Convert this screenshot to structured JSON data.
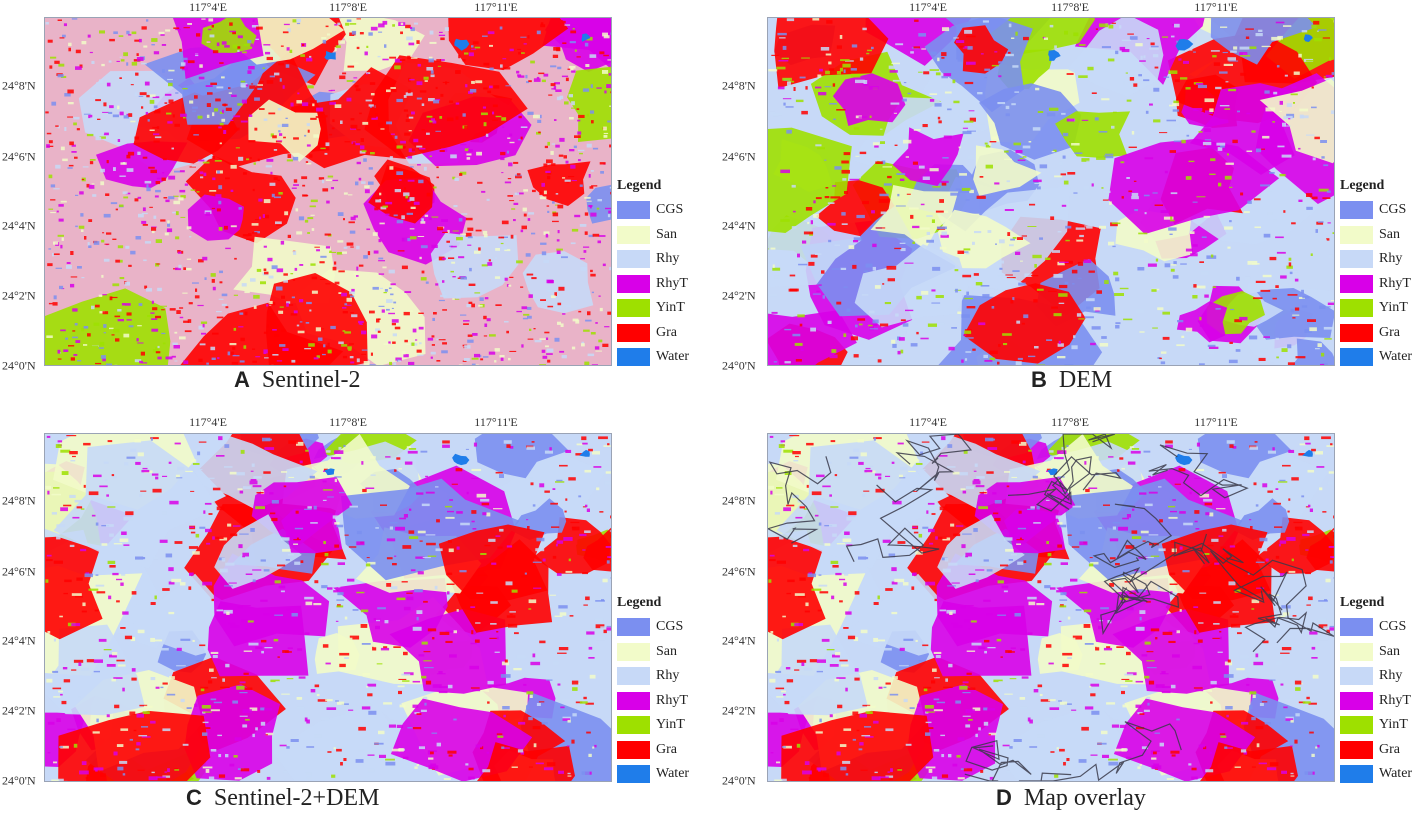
{
  "longitude_ticks": [
    "117°4'E",
    "117°8'E",
    "117°11'E"
  ],
  "latitude_ticks": [
    "24°8'N",
    "24°6'N",
    "24°4'N",
    "24°2'N",
    "24°0'N"
  ],
  "legend": {
    "title": "Legend",
    "items": [
      {
        "label": "CGS",
        "color": "#7b8ff0"
      },
      {
        "label": "San",
        "color": "#f2fbc9"
      },
      {
        "label": "Rhy",
        "color": "#c7d9f7"
      },
      {
        "label": "RhyT",
        "color": "#d800e8"
      },
      {
        "label": "YinT",
        "color": "#9ee000"
      },
      {
        "label": "Gra",
        "color": "#ff0000"
      },
      {
        "label": "Water",
        "color": "#1f7dea"
      }
    ]
  },
  "panels": [
    {
      "letter": "A",
      "title": "Sentinel-2"
    },
    {
      "letter": "B",
      "title": "DEM"
    },
    {
      "letter": "C",
      "title": "Sentinel-2+DEM"
    },
    {
      "letter": "D",
      "title": "Map overlay"
    }
  ]
}
